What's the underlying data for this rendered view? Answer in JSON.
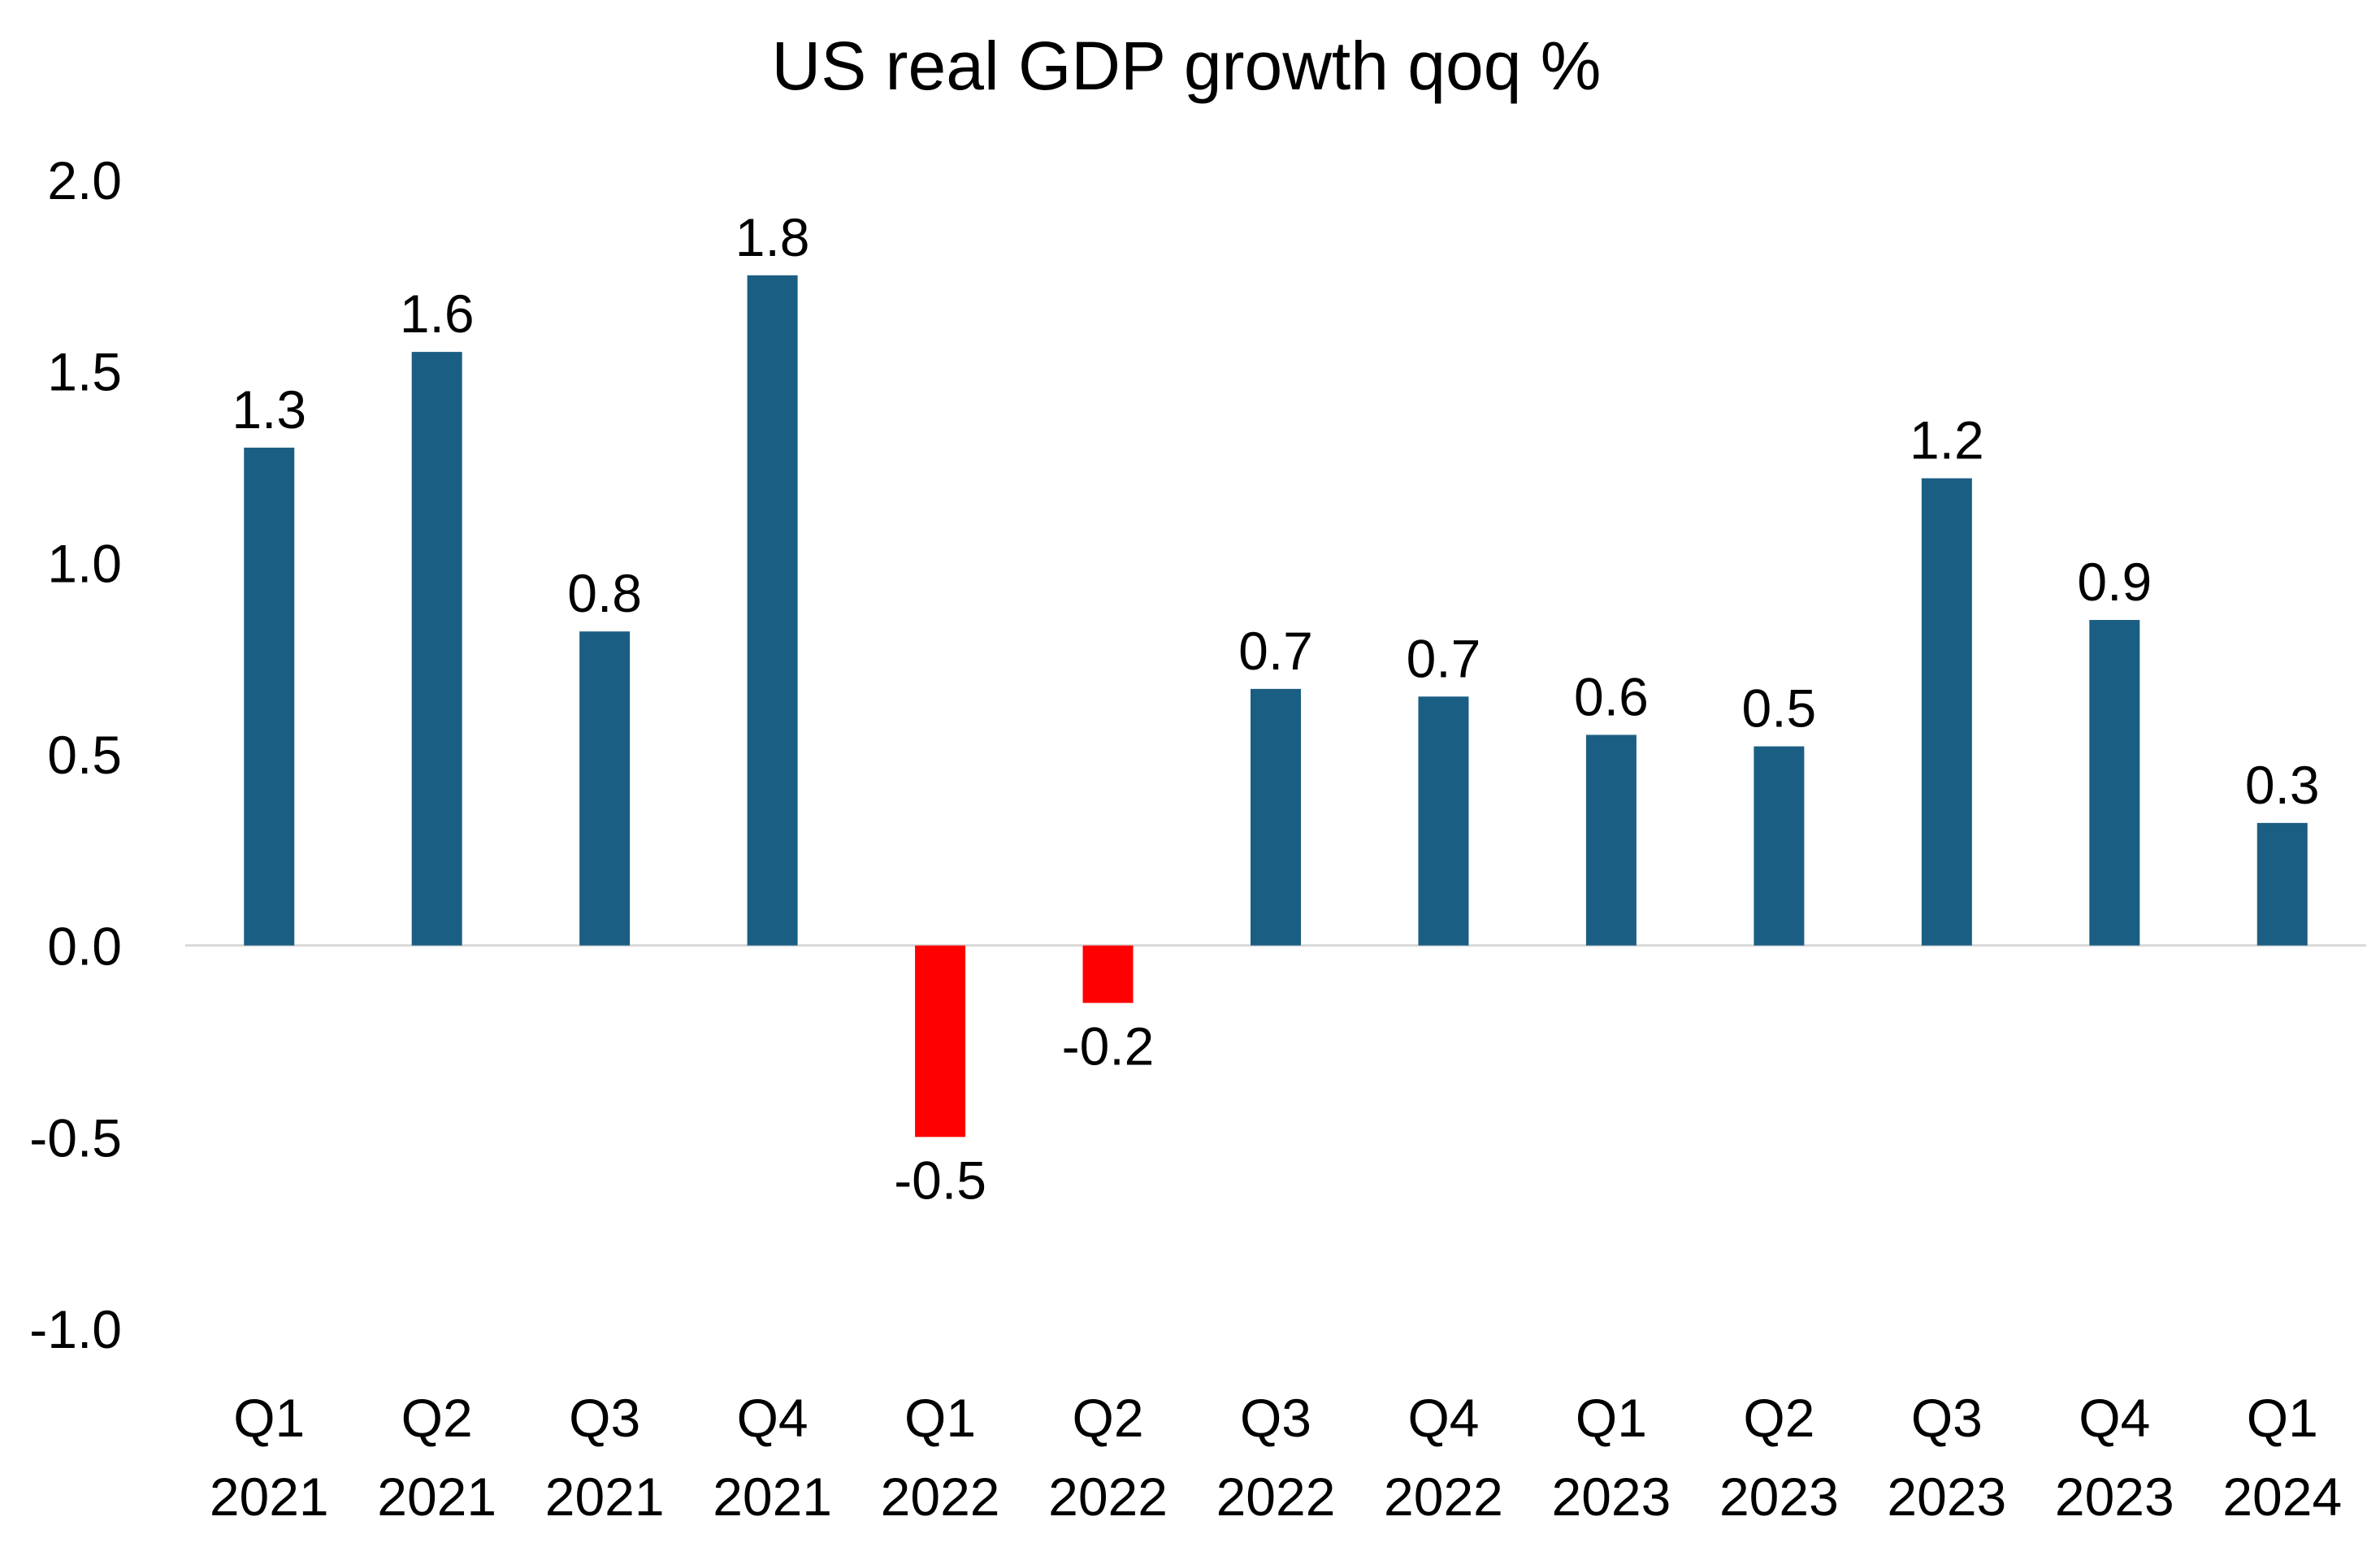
{
  "chart_data": {
    "type": "bar",
    "title": "US real GDP growth qoq %",
    "xlabel": "",
    "ylabel": "",
    "ylim": [
      -1.0,
      2.0
    ],
    "yticks": [
      "2.0",
      "1.5",
      "1.0",
      "0.5",
      "0.0",
      "-0.5",
      "-1.0"
    ],
    "ytick_values": [
      2.0,
      1.5,
      1.0,
      0.5,
      0.0,
      -0.5,
      -1.0
    ],
    "categories": [
      [
        "Q1",
        "2021"
      ],
      [
        "Q2",
        "2021"
      ],
      [
        "Q3",
        "2021"
      ],
      [
        "Q4",
        "2021"
      ],
      [
        "Q1",
        "2022"
      ],
      [
        "Q2",
        "2022"
      ],
      [
        "Q3",
        "2022"
      ],
      [
        "Q4",
        "2022"
      ],
      [
        "Q1",
        "2023"
      ],
      [
        "Q2",
        "2023"
      ],
      [
        "Q3",
        "2023"
      ],
      [
        "Q4",
        "2023"
      ],
      [
        "Q1",
        "2024"
      ]
    ],
    "values": [
      1.3,
      1.55,
      0.82,
      1.75,
      -0.5,
      -0.15,
      0.67,
      0.65,
      0.55,
      0.52,
      1.22,
      0.85,
      0.32
    ],
    "data_labels": [
      "1.3",
      "1.6",
      "0.8",
      "1.8",
      "-0.5",
      "-0.2",
      "0.7",
      "0.7",
      "0.6",
      "0.5",
      "1.2",
      "0.9",
      "0.3"
    ],
    "colors": {
      "positive": "#1b5e83",
      "negative": "#ff0000",
      "zero_line": "#d9d9d9"
    },
    "legend": "none",
    "grid": false
  }
}
